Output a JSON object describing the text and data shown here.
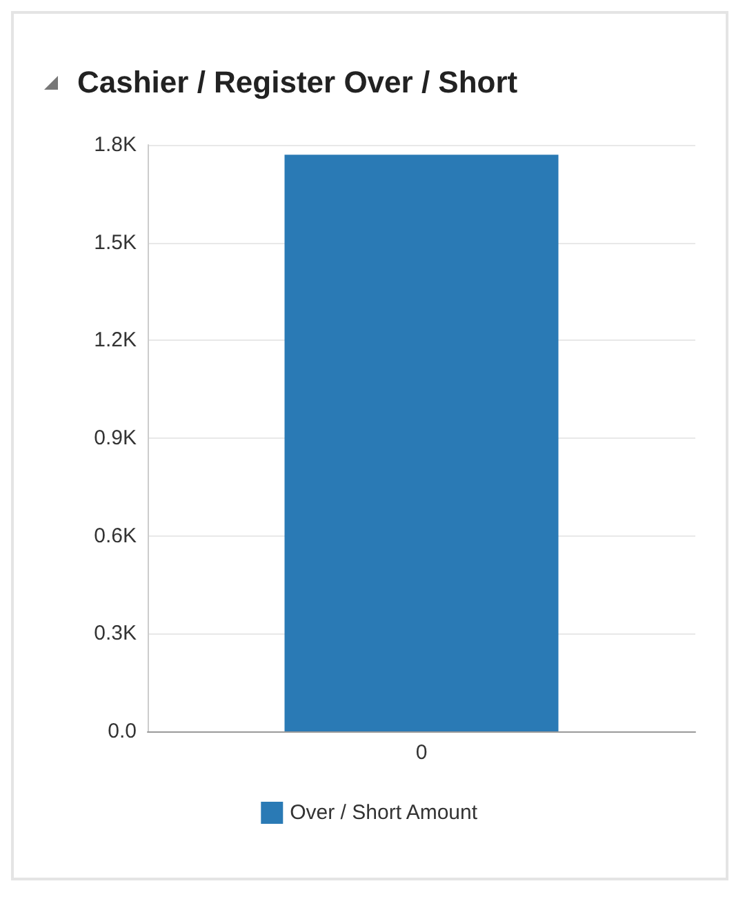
{
  "chart_data": {
    "type": "bar",
    "title": "Cashier / Register Over / Short",
    "categories": [
      "0"
    ],
    "series": [
      {
        "name": "Over / Short Amount",
        "color": "#2a7ab5",
        "values": [
          1770
        ]
      }
    ],
    "ylim": [
      0,
      1800
    ],
    "yticks": [
      {
        "value": 0,
        "label": "0.0"
      },
      {
        "value": 300,
        "label": "0.3K"
      },
      {
        "value": 600,
        "label": "0.6K"
      },
      {
        "value": 900,
        "label": "0.9K"
      },
      {
        "value": 1200,
        "label": "1.2K"
      },
      {
        "value": 1500,
        "label": "1.5K"
      },
      {
        "value": 1800,
        "label": "1.8K"
      }
    ],
    "grid": "y",
    "legend": "bottom"
  }
}
